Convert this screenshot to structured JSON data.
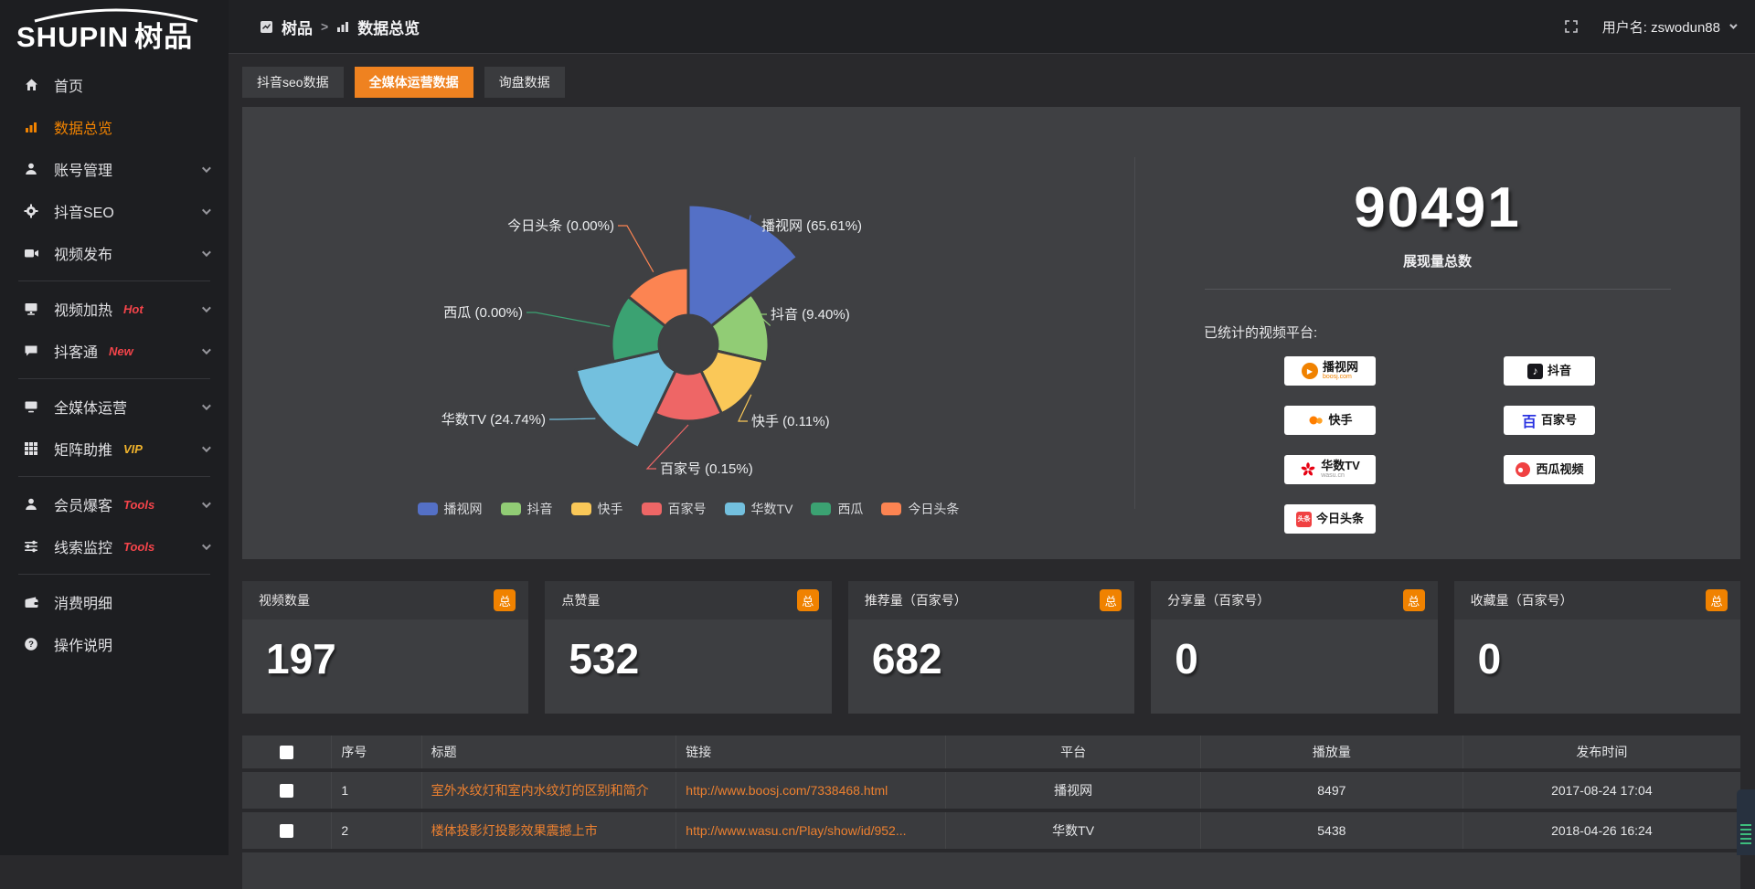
{
  "app": {
    "logo_text": "SHUPIN",
    "logo_suffix": "树品"
  },
  "topbar": {
    "breadcrumb": [
      {
        "label": "树品"
      },
      {
        "label": "数据总览"
      }
    ],
    "separator": ">",
    "username": "用户名: zswodun88"
  },
  "sidebar": {
    "items": [
      {
        "id": "home",
        "label": "首页",
        "icon": "home-icon"
      },
      {
        "id": "data-overview",
        "label": "数据总览",
        "icon": "chart-bars-icon",
        "active": true
      },
      {
        "id": "account-manage",
        "label": "账号管理",
        "icon": "user-icon",
        "chevron": true
      },
      {
        "id": "douyin-seo",
        "label": "抖音SEO",
        "icon": "gear-icon",
        "chevron": true
      },
      {
        "id": "video-publish",
        "label": "视频发布",
        "icon": "video-camera-icon",
        "chevron": true,
        "divider_after": true
      },
      {
        "id": "video-heat",
        "label": "视频加热",
        "icon": "monitor-icon",
        "badge": "Hot",
        "badge_color": "#f4444a",
        "chevron": true
      },
      {
        "id": "douketong",
        "label": "抖客通",
        "icon": "chat-bubble-icon",
        "badge": "New",
        "badge_color": "#f4444a",
        "chevron": true,
        "divider_after": true
      },
      {
        "id": "media-operation",
        "label": "全媒体运营",
        "icon": "screen-icon",
        "chevron": true
      },
      {
        "id": "matrix-boost",
        "label": "矩阵助推",
        "icon": "grid-icon",
        "badge": "VIP",
        "badge_color": "#f0b32c",
        "chevron": true,
        "divider_after": true
      },
      {
        "id": "member-baoke",
        "label": "会员爆客",
        "icon": "member-icon",
        "badge": "Tools",
        "badge_color": "#f4444a",
        "chevron": true
      },
      {
        "id": "clue-monitor",
        "label": "线索监控",
        "icon": "sliders-icon",
        "badge": "Tools",
        "badge_color": "#f4444a",
        "chevron": true,
        "divider_after": true
      },
      {
        "id": "consume-detail",
        "label": "消费明细",
        "icon": "wallet-icon"
      },
      {
        "id": "help",
        "label": "操作说明",
        "icon": "question-circle-icon"
      }
    ]
  },
  "tabs": [
    {
      "id": "douyin-seo-data",
      "label": "抖音seo数据"
    },
    {
      "id": "media-operation-data",
      "label": "全媒体运营数据",
      "active": true
    },
    {
      "id": "inquiry-data",
      "label": "询盘数据"
    }
  ],
  "chart_data": {
    "type": "pie",
    "subtype": "nightingale-rose",
    "title": "",
    "legend_position": "bottom",
    "series": [
      {
        "id": "boosj",
        "name": "播视网",
        "value": 65.61,
        "label": "播视网 (65.61%)",
        "color": "#5470c6"
      },
      {
        "id": "douyin",
        "name": "抖音",
        "value": 9.4,
        "label": "抖音 (9.40%)",
        "color": "#91cc75"
      },
      {
        "id": "kuaishou",
        "name": "快手",
        "value": 0.11,
        "label": "快手 (0.11%)",
        "color": "#fac858"
      },
      {
        "id": "baijiahao",
        "name": "百家号",
        "value": 0.15,
        "label": "百家号 (0.15%)",
        "color": "#ee6666"
      },
      {
        "id": "wasu",
        "name": "华数TV",
        "value": 24.74,
        "label": "华数TV (24.74%)",
        "color": "#73c0de"
      },
      {
        "id": "xigua",
        "name": "西瓜",
        "value": 0.0,
        "label": "西瓜 (0.00%)",
        "color": "#3ba272"
      },
      {
        "id": "toutiao",
        "name": "今日头条",
        "value": 0.0,
        "label": "今日头条 (0.00%)",
        "color": "#fc8452"
      }
    ],
    "legend": [
      "播视网",
      "抖音",
      "快手",
      "百家号",
      "华数TV",
      "西瓜",
      "今日头条"
    ]
  },
  "summary": {
    "total": "90491",
    "total_label": "展现量总数",
    "platforms_title": "已统计的视频平台:",
    "platforms": [
      {
        "id": "boosj",
        "name": "播视网",
        "sub": "boosj.com",
        "sub_color": "#f08200",
        "icon": "boosj-play-icon"
      },
      {
        "id": "douyin",
        "name": "抖音",
        "icon": "douyin-note-icon"
      },
      {
        "id": "kuaishou",
        "name": "快手",
        "icon": "kuaishou-icon"
      },
      {
        "id": "baijiahao",
        "name": "百家号",
        "icon": "baijiahao-icon"
      },
      {
        "id": "wasu",
        "name": "华数TV",
        "sub": "wasu.cn",
        "sub_color": "#999999",
        "icon": "wasu-icon"
      },
      {
        "id": "xigua",
        "name": "西瓜视频",
        "icon": "xigua-icon"
      },
      {
        "id": "toutiao",
        "name": "今日头条",
        "icon": "toutiao-icon"
      }
    ]
  },
  "stats": {
    "badge": "总",
    "cards": [
      {
        "label": "视频数量",
        "value": "197"
      },
      {
        "label": "点赞量",
        "value": "532"
      },
      {
        "label": "推荐量（百家号）",
        "value": "682"
      },
      {
        "label": "分享量（百家号）",
        "value": "0"
      },
      {
        "label": "收藏量（百家号）",
        "value": "0"
      }
    ]
  },
  "table": {
    "headers": [
      "序号",
      "标题",
      "链接",
      "平台",
      "播放量",
      "发布时间"
    ],
    "rows": [
      {
        "index": "1",
        "title": "室外水纹灯和室内水纹灯的区别和简介",
        "link": "http://www.boosj.com/7338468.html",
        "platform": "播视网",
        "views": "8497",
        "time": "2017-08-24 17:04"
      },
      {
        "index": "2",
        "title": "楼体投影灯投影效果震撼上市",
        "link": "http://www.wasu.cn/Play/show/id/952...",
        "platform": "华数TV",
        "views": "5438",
        "time": "2018-04-26 16:24"
      }
    ]
  }
}
